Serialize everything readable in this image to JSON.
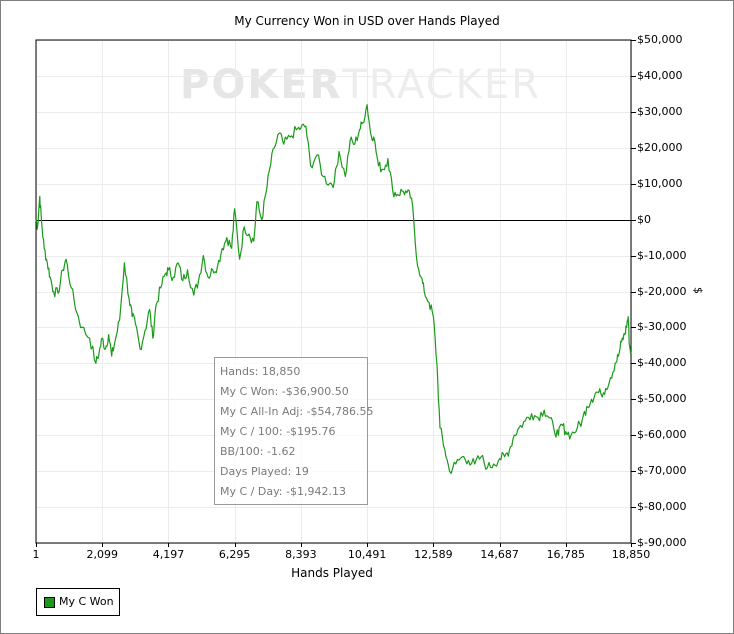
{
  "chart_data": {
    "type": "line",
    "title": "My Currency Won in USD over Hands Played",
    "xlabel": "Hands Played",
    "ylabel": "$",
    "xlim": [
      1,
      18850
    ],
    "ylim": [
      -90000,
      50000
    ],
    "x_ticks": [
      "1",
      "2,099",
      "4,197",
      "6,295",
      "8,393",
      "10,491",
      "12,589",
      "14,687",
      "16,785",
      "18,850"
    ],
    "x_tick_values": [
      1,
      2099,
      4197,
      6295,
      8393,
      10491,
      12589,
      14687,
      16785,
      18850
    ],
    "y_ticks": [
      "$50,000",
      "$40,000",
      "$30,000",
      "$20,000",
      "$10,000",
      "$0",
      "$-10,000",
      "$-20,000",
      "$-30,000",
      "$-40,000",
      "$-50,000",
      "$-60,000",
      "$-70,000",
      "$-80,000",
      "$-90,000"
    ],
    "y_tick_values": [
      50000,
      40000,
      30000,
      20000,
      10000,
      0,
      -10000,
      -20000,
      -30000,
      -40000,
      -50000,
      -60000,
      -70000,
      -80000,
      -90000
    ],
    "grid": true,
    "zero_line": true,
    "legend_position": "bottom-left",
    "series": [
      {
        "name": "My C Won",
        "color": "#1a9a1a",
        "x": [
          1,
          50,
          120,
          180,
          260,
          360,
          450,
          560,
          700,
          850,
          950,
          1120,
          1300,
          1450,
          1700,
          1900,
          2000,
          2099,
          2200,
          2300,
          2400,
          2500,
          2650,
          2800,
          2950,
          3050,
          3150,
          3300,
          3450,
          3600,
          3700,
          3800,
          3950,
          4100,
          4197,
          4350,
          4500,
          4650,
          4800,
          5000,
          5150,
          5300,
          5450,
          5600,
          5750,
          5900,
          6050,
          6200,
          6295,
          6450,
          6600,
          6750,
          6900,
          7000,
          7150,
          7300,
          7400,
          7550,
          7700,
          7850,
          8050,
          8250,
          8393,
          8550,
          8700,
          8900,
          9100,
          9300,
          9450,
          9600,
          9800,
          9950,
          10100,
          10250,
          10350,
          10491,
          10600,
          10700,
          10850,
          11000,
          11150,
          11300,
          11450,
          11600,
          11750,
          11900,
          12050,
          12200,
          12300,
          12450,
          12589,
          12700,
          12800,
          12950,
          13100,
          13300,
          13500,
          13700,
          13900,
          14100,
          14300,
          14500,
          14687,
          14850,
          15000,
          15150,
          15300,
          15500,
          15700,
          15900,
          16100,
          16250,
          16400,
          16550,
          16650,
          16785,
          16950,
          17150,
          17300,
          17450,
          17600,
          17750,
          17900,
          18050,
          18200,
          18350,
          18450,
          18550,
          18650,
          18700,
          18760,
          18800,
          18850
        ],
        "y": [
          0,
          -2000,
          6500,
          -1000,
          -8000,
          -12000,
          -16000,
          -20000,
          -20500,
          -14000,
          -11000,
          -19000,
          -26000,
          -30000,
          -33000,
          -40000,
          -37000,
          -33000,
          -36000,
          -32000,
          -38000,
          -34000,
          -28000,
          -12000,
          -22000,
          -27000,
          -29000,
          -36000,
          -31000,
          -25000,
          -33000,
          -24000,
          -19000,
          -15000,
          -14000,
          -16000,
          -12000,
          -17000,
          -14000,
          -21000,
          -17000,
          -10000,
          -16000,
          -14000,
          -13000,
          -8000,
          -5000,
          -8000,
          3000,
          -11000,
          -2000,
          -4000,
          -6000,
          5000,
          0,
          8000,
          14000,
          20000,
          24000,
          21000,
          23000,
          25000,
          25500,
          26000,
          15000,
          18000,
          12000,
          10000,
          10500,
          19000,
          12000,
          22000,
          21000,
          25000,
          27000,
          32000,
          24000,
          23000,
          15000,
          14000,
          17000,
          8000,
          7000,
          8000,
          7500,
          6000,
          -10000,
          -16000,
          -20000,
          -23000,
          -27000,
          -40000,
          -58000,
          -64000,
          -70000,
          -68000,
          -66000,
          -67000,
          -68000,
          -66000,
          -69000,
          -68000,
          -66500,
          -66000,
          -64000,
          -60000,
          -58000,
          -56000,
          -54000,
          -55000,
          -53000,
          -55000,
          -58000,
          -60000,
          -57000,
          -59000,
          -60000,
          -58000,
          -56000,
          -52000,
          -50000,
          -48000,
          -48500,
          -47000,
          -44000,
          -40000,
          -38000,
          -34000,
          -32000,
          -30000,
          -27000,
          -35000,
          -36900
        ]
      }
    ]
  },
  "watermark": {
    "part1": "POKER",
    "part2": "TRACKER"
  },
  "stats": [
    "Hands: 18,850",
    "My C Won: -$36,900.50",
    "My C All-In Adj: -$54,786.55",
    "My C / 100: -$195.76",
    "BB/100: -1.62",
    "Days Played: 19",
    "My C / Day: -$1,942.13"
  ],
  "legend": {
    "label": "My C Won",
    "color": "#1a9a1a"
  }
}
